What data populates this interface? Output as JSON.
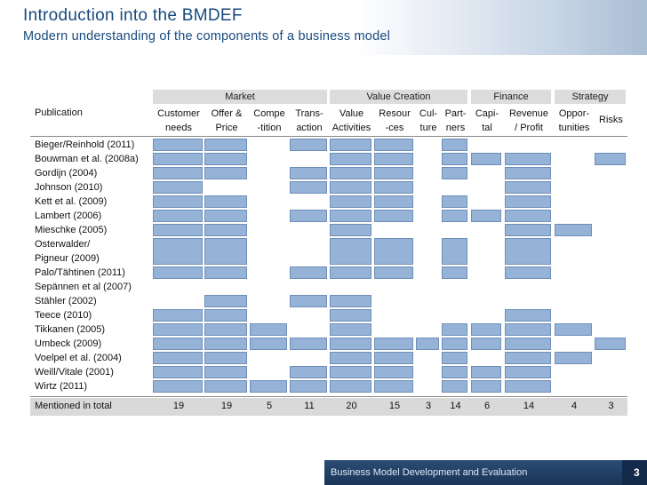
{
  "slide": {
    "title": "Introduction into the BMDEF",
    "subtitle": "Modern understanding of the components of a business model"
  },
  "table": {
    "row_header": "Publication",
    "groups": [
      "Market",
      "Value Creation",
      "Finance",
      "Strategy"
    ],
    "columns": [
      {
        "line1": "Customer",
        "line2": "needs"
      },
      {
        "line1": "Offer &",
        "line2": "Price"
      },
      {
        "line1": "Compe",
        "line2": "-tition"
      },
      {
        "line1": "Trans-",
        "line2": "action"
      },
      {
        "line1": "Value",
        "line2": "Activities"
      },
      {
        "line1": "Resour",
        "line2": "-ces"
      },
      {
        "line1": "Cul-",
        "line2": "ture"
      },
      {
        "line1": "Part-",
        "line2": "ners"
      },
      {
        "line1": "Capi-",
        "line2": "tal"
      },
      {
        "line1": "Revenue",
        "line2": "/ Profit"
      },
      {
        "line1": "Oppor-",
        "line2": "tunities"
      },
      {
        "line1": "Risks",
        "line2": ""
      }
    ],
    "rows": [
      {
        "label": "Bieger/Reinhold (2011)",
        "marks": [
          1,
          1,
          0,
          1,
          1,
          1,
          0,
          1,
          0,
          0,
          0,
          0
        ]
      },
      {
        "label": "Bouwman et al. (2008a)",
        "marks": [
          1,
          1,
          0,
          0,
          1,
          1,
          0,
          1,
          1,
          1,
          0,
          1
        ]
      },
      {
        "label": "Gordijn (2004)",
        "marks": [
          1,
          1,
          0,
          1,
          1,
          1,
          0,
          1,
          0,
          1,
          0,
          0
        ]
      },
      {
        "label": "Johnson (2010)",
        "marks": [
          1,
          0,
          0,
          1,
          1,
          1,
          0,
          0,
          0,
          1,
          0,
          0
        ]
      },
      {
        "label": "Kett et al. (2009)",
        "marks": [
          1,
          1,
          0,
          0,
          1,
          1,
          0,
          1,
          0,
          1,
          0,
          0
        ]
      },
      {
        "label": "Lambert (2006)",
        "marks": [
          1,
          1,
          0,
          1,
          1,
          1,
          0,
          1,
          1,
          1,
          0,
          0
        ]
      },
      {
        "label": "Mieschke (2005)",
        "marks": [
          1,
          1,
          0,
          0,
          1,
          0,
          0,
          0,
          0,
          1,
          1,
          0
        ]
      },
      {
        "label": "Osterwalder/",
        "label2": "Pigneur (2009)",
        "marks": [
          1,
          1,
          0,
          0,
          1,
          1,
          0,
          1,
          0,
          1,
          0,
          0
        ]
      },
      {
        "label": "Palo/Tähtinen (2011)",
        "marks": [
          1,
          1,
          0,
          1,
          1,
          1,
          0,
          1,
          0,
          1,
          0,
          0
        ]
      },
      {
        "label": "Sepännen et al (2007)",
        "marks": [
          0,
          0,
          0,
          0,
          0,
          0,
          0,
          0,
          0,
          0,
          0,
          0
        ]
      },
      {
        "label": "Stähler (2002)",
        "marks": [
          0,
          1,
          0,
          1,
          1,
          0,
          0,
          0,
          0,
          0,
          0,
          0
        ]
      },
      {
        "label": "Teece (2010)",
        "marks": [
          1,
          1,
          0,
          0,
          1,
          0,
          0,
          0,
          0,
          1,
          0,
          0
        ]
      },
      {
        "label": "Tikkanen (2005)",
        "marks": [
          1,
          1,
          1,
          0,
          1,
          0,
          0,
          1,
          1,
          1,
          1,
          0
        ]
      },
      {
        "label": "Umbeck (2009)",
        "marks": [
          1,
          1,
          1,
          1,
          1,
          1,
          1,
          1,
          1,
          1,
          0,
          1
        ]
      },
      {
        "label": "Voelpel et al. (2004)",
        "marks": [
          1,
          1,
          0,
          0,
          1,
          1,
          0,
          1,
          0,
          1,
          1,
          0
        ]
      },
      {
        "label": "Weill/Vitale (2001)",
        "marks": [
          1,
          1,
          0,
          1,
          1,
          1,
          0,
          1,
          1,
          1,
          0,
          0
        ]
      },
      {
        "label": "Wirtz (2011)",
        "marks": [
          1,
          1,
          1,
          1,
          1,
          1,
          0,
          1,
          1,
          1,
          0,
          0
        ]
      }
    ],
    "total_label": "Mentioned in total",
    "totals": [
      "19",
      "19",
      "5",
      "11",
      "20",
      "15",
      "3",
      "14",
      "6",
      "14",
      "4",
      "3"
    ]
  },
  "footer": {
    "text": "Business Model Development and Evaluation",
    "page": "3"
  },
  "colors": {
    "title": "#17497d",
    "mark": "#95b3d7",
    "group_bg": "#dcdcdc",
    "footer_bg": "#1f3b60"
  }
}
